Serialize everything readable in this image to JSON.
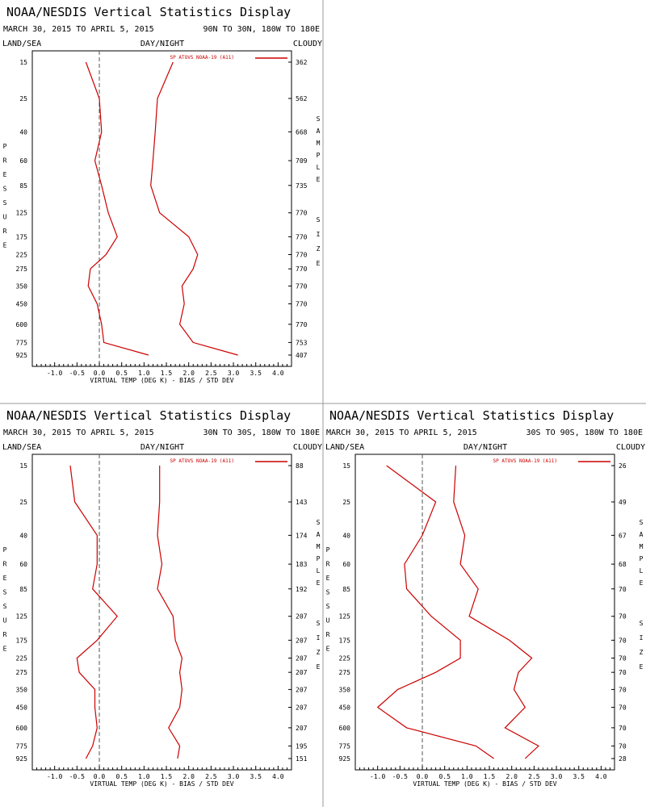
{
  "panels": [
    {
      "title": "NOAA/NESDIS Vertical Statistics Display",
      "date_range": "MARCH 30, 2015 TO APRIL 5, 2015",
      "region": "90N TO 30N, 180W TO 180E",
      "land_sea": "LAND/SEA",
      "day_night": "DAY/NIGHT",
      "cloudy": "CLOUDY",
      "left_vertical_label": "PRESSURE",
      "right_vertical_label": [
        "SAMPLE",
        "SIZE"
      ],
      "legend": "SP ATOVS NOAA-19 (A11)",
      "xlabel": "VIRTUAL TEMP (DEG K) - BIAS / STD DEV",
      "x_ticks": [
        "-1.0",
        "-0.5",
        "0.0",
        "0.5",
        "1.0",
        "1.5",
        "2.0",
        "2.5",
        "3.0",
        "3.5",
        "4.0"
      ],
      "pressure_levels": [
        "15",
        "25",
        "40",
        "60",
        "85",
        "125",
        "175",
        "225",
        "275",
        "350",
        "450",
        "600",
        "775",
        "925"
      ],
      "sample_sizes": [
        "362",
        "562",
        "668",
        "709",
        "735",
        "770",
        "770",
        "770",
        "770",
        "770",
        "770",
        "770",
        "753",
        "407"
      ]
    },
    {
      "title": "NOAA/NESDIS Vertical Statistics Display",
      "date_range": "MARCH 30, 2015 TO APRIL 5, 2015",
      "region": "30N TO 30S, 180W TO 180E",
      "land_sea": "LAND/SEA",
      "day_night": "DAY/NIGHT",
      "cloudy": "CLOUDY",
      "left_vertical_label": "PRESSURE",
      "right_vertical_label": [
        "SAMPLE",
        "SIZE"
      ],
      "legend": "SP ATOVS NOAA-19 (A11)",
      "xlabel": "VIRTUAL TEMP (DEG K) - BIAS / STD DEV",
      "x_ticks": [
        "-1.0",
        "-0.5",
        "0.0",
        "0.5",
        "1.0",
        "1.5",
        "2.0",
        "2.5",
        "3.0",
        "3.5",
        "4.0"
      ],
      "pressure_levels": [
        "15",
        "25",
        "40",
        "60",
        "85",
        "125",
        "175",
        "225",
        "275",
        "350",
        "450",
        "600",
        "775",
        "925"
      ],
      "sample_sizes": [
        "88",
        "143",
        "174",
        "183",
        "192",
        "207",
        "207",
        "207",
        "207",
        "207",
        "207",
        "207",
        "195",
        "151"
      ]
    },
    {
      "title": "NOAA/NESDIS Vertical Statistics Display",
      "date_range": "MARCH 30, 2015 TO APRIL 5, 2015",
      "region": "30S TO 90S, 180W TO 180E",
      "land_sea": "LAND/SEA",
      "day_night": "DAY/NIGHT",
      "cloudy": "CLOUDY",
      "left_vertical_label": "PRESSURE",
      "right_vertical_label": [
        "SAMPLE",
        "SIZE"
      ],
      "legend": "SP ATOVS NOAA-19 (A11)",
      "xlabel": "VIRTUAL TEMP (DEG K) - BIAS / STD DEV",
      "x_ticks": [
        "-1.0",
        "-0.5",
        "0.0",
        "0.5",
        "1.0",
        "1.5",
        "2.0",
        "2.5",
        "3.0",
        "3.5",
        "4.0"
      ],
      "pressure_levels": [
        "15",
        "25",
        "40",
        "60",
        "85",
        "125",
        "175",
        "225",
        "275",
        "350",
        "450",
        "600",
        "775",
        "925"
      ],
      "sample_sizes": [
        "26",
        "49",
        "67",
        "68",
        "70",
        "70",
        "70",
        "70",
        "70",
        "70",
        "70",
        "70",
        "70",
        "28"
      ]
    }
  ],
  "colors": {
    "line": "#cc0000",
    "zero_line": "#555555",
    "frame": "#000000",
    "divider": "#999999"
  },
  "chart_data": [
    {
      "type": "line",
      "x_range": [
        -1.5,
        4.3
      ],
      "pressure_levels": [
        15,
        25,
        40,
        60,
        85,
        125,
        175,
        225,
        275,
        350,
        450,
        600,
        775,
        925
      ],
      "series": [
        {
          "values": [
            -0.3,
            0.0,
            0.05,
            -0.1,
            0.05,
            0.2,
            0.4,
            0.15,
            -0.2,
            -0.25,
            -0.05,
            0.05,
            0.1,
            1.1
          ]
        },
        {
          "values": [
            1.65,
            1.3,
            1.25,
            1.2,
            1.15,
            1.35,
            2.0,
            2.2,
            2.1,
            1.85,
            1.9,
            1.8,
            2.1,
            3.1
          ]
        }
      ]
    },
    {
      "type": "line",
      "x_range": [
        -1.5,
        4.3
      ],
      "pressure_levels": [
        15,
        25,
        40,
        60,
        85,
        125,
        175,
        225,
        275,
        350,
        450,
        600,
        775,
        925
      ],
      "series": [
        {
          "values": [
            -0.65,
            -0.55,
            -0.05,
            -0.05,
            -0.15,
            0.4,
            -0.05,
            -0.5,
            -0.45,
            -0.1,
            -0.1,
            -0.05,
            -0.15,
            -0.3
          ]
        },
        {
          "values": [
            1.35,
            1.35,
            1.3,
            1.4,
            1.3,
            1.65,
            1.7,
            1.85,
            1.8,
            1.85,
            1.8,
            1.55,
            1.8,
            1.75
          ]
        }
      ]
    },
    {
      "type": "line",
      "x_range": [
        -1.5,
        4.3
      ],
      "pressure_levels": [
        15,
        25,
        40,
        60,
        85,
        125,
        175,
        225,
        275,
        350,
        450,
        600,
        775,
        925
      ],
      "series": [
        {
          "values": [
            -0.8,
            0.3,
            0.0,
            -0.4,
            -0.35,
            0.2,
            0.85,
            0.85,
            0.3,
            -0.55,
            -1.0,
            -0.35,
            1.2,
            1.6
          ]
        },
        {
          "values": [
            0.75,
            0.7,
            0.95,
            0.85,
            1.25,
            1.05,
            1.95,
            2.45,
            2.15,
            2.05,
            2.3,
            1.85,
            2.6,
            2.3
          ]
        }
      ]
    }
  ]
}
